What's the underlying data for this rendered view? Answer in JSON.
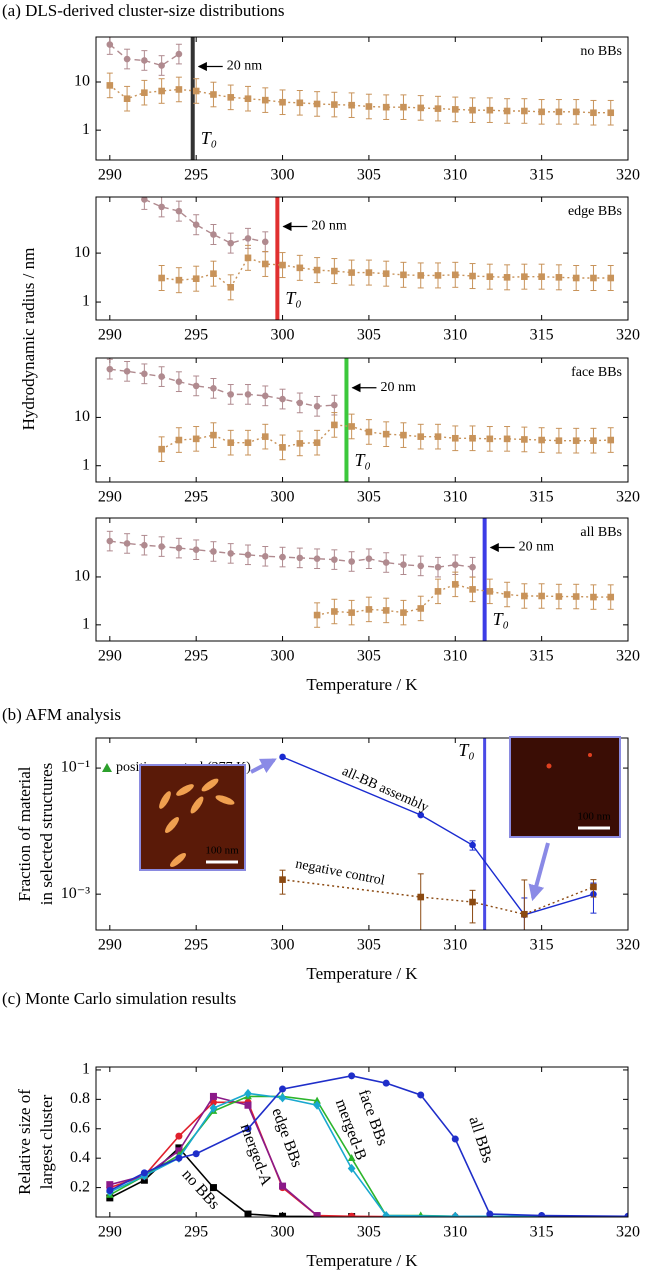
{
  "chart_data": [
    {
      "type": "line",
      "log_y": true,
      "title": "(a) DLS-derived cluster-size distributions",
      "ylabel": "Hydrodynamic radius / nm",
      "label": "no BBs",
      "label_color": "#000000",
      "t0": 294.8,
      "t0_color": "#333333",
      "t0_label": "T₀",
      "annotation": "20 nm",
      "xlim": [
        289.2,
        320
      ],
      "xticks": [
        290,
        295,
        300,
        305,
        310,
        315,
        320
      ],
      "ylim": [
        0.24,
        86
      ],
      "yticks": [
        1,
        10
      ],
      "series": [
        {
          "color": "#b08a8f",
          "marker": "circle",
          "dash": "dashed",
          "error_factor": 1.6,
          "x": [
            290,
            291,
            292,
            293,
            294
          ],
          "values": [
            60,
            30,
            28,
            22,
            38
          ]
        },
        {
          "color": "#c8935a",
          "marker": "square",
          "dash": "dotted",
          "error_factor": 1.8,
          "x": [
            290,
            291,
            292,
            293,
            294,
            295,
            296,
            297,
            298,
            299,
            300,
            301,
            302,
            303,
            304,
            305,
            306,
            307,
            308,
            309,
            310,
            311,
            312,
            313,
            314,
            315,
            316,
            317,
            318,
            319
          ],
          "values": [
            8.5,
            4.5,
            6,
            6.5,
            7,
            6.5,
            5.5,
            4.8,
            4.5,
            4.2,
            3.8,
            3.7,
            3.5,
            3.4,
            3.3,
            3.1,
            3,
            3,
            2.9,
            2.8,
            2.7,
            2.6,
            2.6,
            2.5,
            2.5,
            2.4,
            2.4,
            2.4,
            2.3,
            2.3
          ]
        }
      ]
    },
    {
      "type": "line",
      "log_y": true,
      "label": "edge BBs",
      "label_color": "#e02020",
      "t0": 299.7,
      "t0_color": "#e03030",
      "t0_label": "T₀",
      "annotation": "20 nm",
      "xlim": [
        289.2,
        320
      ],
      "xticks": [
        290,
        295,
        300,
        305,
        310,
        315,
        320
      ],
      "ylim": [
        0.43,
        140
      ],
      "yticks": [
        1,
        10
      ],
      "series": [
        {
          "color": "#b08a8f",
          "marker": "circle",
          "dash": "dashed",
          "error_factor": 1.6,
          "x": [
            292,
            293,
            294,
            295,
            296,
            297,
            298,
            299
          ],
          "values": [
            125,
            88,
            72,
            38,
            24,
            16,
            20,
            17
          ]
        },
        {
          "color": "#c8935a",
          "marker": "square",
          "dash": "dotted",
          "error_factor": 1.8,
          "x": [
            293,
            294,
            295,
            296,
            297,
            298,
            299,
            300,
            301,
            302,
            303,
            304,
            305,
            306,
            307,
            308,
            309,
            310,
            311,
            312,
            313,
            314,
            315,
            316,
            317,
            318,
            319
          ],
          "values": [
            3.1,
            2.8,
            3,
            3.8,
            2,
            8,
            6,
            5.7,
            5,
            4.5,
            4.3,
            4,
            4,
            3.8,
            3.6,
            3.5,
            3.5,
            3.6,
            3.4,
            3.3,
            3.2,
            3.3,
            3.3,
            3.2,
            3.1,
            3.1,
            3.1
          ]
        }
      ]
    },
    {
      "type": "line",
      "log_y": true,
      "label": "face BBs",
      "label_color": "#2cb52c",
      "t0": 303.7,
      "t0_color": "#3cc83c",
      "t0_label": "T₀",
      "annotation": "20 nm",
      "xlim": [
        289.2,
        320
      ],
      "xticks": [
        290,
        295,
        300,
        305,
        310,
        315,
        320
      ],
      "ylim": [
        0.46,
        170
      ],
      "yticks": [
        1,
        10
      ],
      "series": [
        {
          "color": "#b08a8f",
          "marker": "circle",
          "dash": "dashed",
          "error_factor": 1.6,
          "x": [
            290,
            291,
            292,
            293,
            294,
            295,
            296,
            297,
            298,
            299,
            300,
            301,
            302,
            303
          ],
          "values": [
            100,
            90,
            80,
            70,
            55,
            45,
            40,
            30,
            30,
            28,
            24,
            20,
            17,
            18
          ]
        },
        {
          "color": "#c8935a",
          "marker": "square",
          "dash": "dotted",
          "error_factor": 1.8,
          "x": [
            293,
            294,
            295,
            296,
            297,
            298,
            299,
            300,
            301,
            302,
            303,
            304,
            305,
            306,
            307,
            308,
            309,
            310,
            311,
            312,
            313,
            314,
            315,
            316,
            317,
            318,
            319
          ],
          "values": [
            2.2,
            3.4,
            3.6,
            4.3,
            3,
            3,
            4,
            2.4,
            2.9,
            3,
            7,
            6.5,
            5,
            4.5,
            4.3,
            4,
            4,
            3.7,
            3.7,
            3.6,
            3.6,
            3.5,
            3.4,
            3.3,
            3.3,
            3.3,
            3.4
          ]
        }
      ]
    },
    {
      "type": "line",
      "log_y": true,
      "xlabel": "Temperature / K",
      "label": "all BBs",
      "label_color": "#2030d0",
      "t0": 311.7,
      "t0_color": "#3c3ce6",
      "t0_label": "T₀",
      "annotation": "20 nm",
      "xlim": [
        289.2,
        320
      ],
      "xticks": [
        290,
        295,
        300,
        305,
        310,
        315,
        320
      ],
      "ylim": [
        0.46,
        170
      ],
      "yticks": [
        1,
        10
      ],
      "series": [
        {
          "color": "#b08a8f",
          "marker": "circle",
          "dash": "dashed",
          "error_factor": 1.6,
          "x": [
            290,
            291,
            292,
            293,
            294,
            295,
            296,
            297,
            298,
            299,
            300,
            301,
            302,
            303,
            304,
            305,
            306,
            307,
            308,
            309,
            310,
            311
          ],
          "values": [
            56,
            50,
            46,
            43,
            40,
            37,
            34,
            31,
            29,
            27,
            26,
            25,
            24,
            23,
            21,
            24,
            20,
            18,
            17,
            16,
            18,
            16
          ]
        },
        {
          "color": "#c8935a",
          "marker": "square",
          "dash": "dotted",
          "error_factor": 1.8,
          "x": [
            302,
            303,
            304,
            305,
            306,
            307,
            308,
            309,
            310,
            311,
            312,
            313,
            314,
            315,
            316,
            317,
            318,
            319
          ],
          "values": [
            1.6,
            1.9,
            1.8,
            2.1,
            2,
            1.8,
            2.2,
            5,
            7,
            5.5,
            5,
            4.3,
            4,
            4,
            3.9,
            3.9,
            3.8,
            3.8
          ]
        }
      ]
    },
    {
      "type": "line",
      "log_y": true,
      "title": "(b) AFM analysis",
      "xlabel": "Temperature / K",
      "ylabel": [
        "Fraction of material",
        "in selected structures"
      ],
      "t0": 311.7,
      "t0_color": "#4a4ae6",
      "t0_label": "T₀",
      "annotation": "positive control (277 K)",
      "annotation_color": "#2ca02c",
      "insets": [
        "100 nm",
        "100 nm"
      ],
      "xlim": [
        289.2,
        320
      ],
      "xticks": [
        290,
        295,
        300,
        305,
        310,
        315,
        320
      ],
      "ylim": [
        0.00027,
        0.3
      ],
      "yticks": [
        {
          "value": 0.1,
          "label": "10⁻¹"
        },
        {
          "value": 0.001,
          "label": "10⁻³"
        }
      ],
      "series": [
        {
          "name": "all-BB assembly",
          "color": "#1a2bd0",
          "marker": "circle",
          "dash": "solid",
          "x": [
            300,
            308,
            311,
            314,
            318
          ],
          "values": [
            0.15,
            0.018,
            0.006,
            0.00047,
            0.001
          ],
          "errors": [
            0,
            0,
            0.001,
            0.0004,
            0.0005
          ]
        },
        {
          "name": "negative control",
          "color": "#8b4a12",
          "marker": "square",
          "dash": "dotted",
          "x": [
            300,
            308,
            311,
            314,
            318
          ],
          "values": [
            0.0017,
            0.0009,
            0.00075,
            0.00048,
            0.0013
          ],
          "errors": [
            0.0007,
            0.0012,
            0.0004,
            0.0012,
            0.0004
          ]
        }
      ]
    },
    {
      "type": "line",
      "log_y": false,
      "title": "(c) Monte Carlo simulation results",
      "xlabel": "Temperature / K",
      "ylabel": [
        "Relative size of",
        "largest cluster"
      ],
      "xlim": [
        289.2,
        320
      ],
      "xticks": [
        290,
        295,
        300,
        305,
        310,
        315,
        320
      ],
      "ylim": [
        0,
        1.02
      ],
      "yticks": [
        0.2,
        0.4,
        0.6,
        0.8,
        1
      ],
      "series": [
        {
          "name": "no BBs",
          "color": "#000000",
          "marker": "square",
          "dash": "solid",
          "x": [
            290,
            292,
            294,
            296,
            298,
            300,
            302,
            304
          ],
          "values": [
            0.13,
            0.25,
            0.47,
            0.2,
            0.02,
            0.005,
            0.003,
            0.003
          ]
        },
        {
          "name": "edge BBs",
          "color": "#e0202c",
          "marker": "circle",
          "dash": "solid",
          "x": [
            290,
            292,
            294,
            296,
            298,
            300,
            302,
            304,
            306,
            310,
            320
          ],
          "values": [
            0.2,
            0.28,
            0.55,
            0.78,
            0.78,
            0.2,
            0.01,
            0.005,
            0.003,
            0.003,
            0.003
          ]
        },
        {
          "name": "merged-A",
          "color": "#8b1a89",
          "marker": "square",
          "dash": "solid",
          "x": [
            290,
            292,
            294,
            296,
            298,
            300,
            302
          ],
          "values": [
            0.22,
            0.28,
            0.45,
            0.82,
            0.76,
            0.21,
            0.01
          ]
        },
        {
          "name": "face BBs",
          "color": "#2cb52c",
          "marker": "triangle",
          "dash": "solid",
          "x": [
            290,
            292,
            294,
            296,
            298,
            300,
            302,
            304,
            306,
            308,
            310,
            320
          ],
          "values": [
            0.15,
            0.28,
            0.42,
            0.72,
            0.82,
            0.82,
            0.79,
            0.4,
            0.01,
            0.01,
            0.005,
            0.003
          ]
        },
        {
          "name": "merged-B",
          "color": "#19a8cf",
          "marker": "diamond",
          "dash": "solid",
          "x": [
            290,
            292,
            294,
            296,
            298,
            300,
            302,
            304,
            306,
            310,
            320
          ],
          "values": [
            0.17,
            0.28,
            0.4,
            0.74,
            0.84,
            0.81,
            0.76,
            0.33,
            0.01,
            0.005,
            0.003
          ]
        },
        {
          "name": "all BBs",
          "color": "#1f2ec9",
          "marker": "circle",
          "dash": "solid",
          "x": [
            290,
            292,
            294,
            295,
            298,
            300,
            304,
            306,
            308,
            310,
            312,
            315,
            320
          ],
          "values": [
            0.18,
            0.3,
            0.4,
            0.43,
            0.6,
            0.87,
            0.96,
            0.91,
            0.83,
            0.53,
            0.02,
            0.01,
            0.005
          ]
        }
      ]
    }
  ]
}
